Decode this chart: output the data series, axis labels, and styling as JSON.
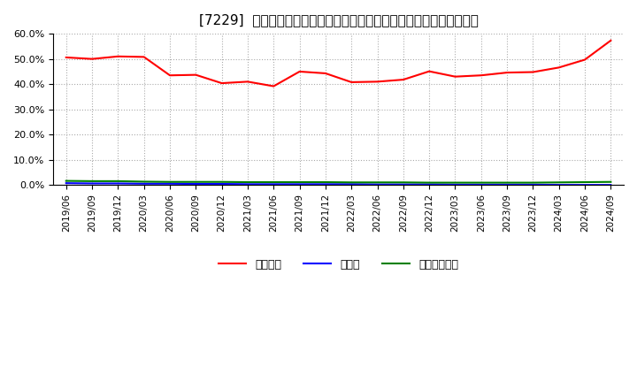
{
  "title": "[7229]  自己資本、のれん、繰延税金資産の総資産に対する比率の推移",
  "x_labels": [
    "2019/06",
    "2019/09",
    "2019/12",
    "2020/03",
    "2020/06",
    "2020/09",
    "2020/12",
    "2021/03",
    "2021/06",
    "2021/09",
    "2021/12",
    "2022/03",
    "2022/06",
    "2022/09",
    "2022/12",
    "2023/03",
    "2023/06",
    "2023/09",
    "2023/12",
    "2024/03",
    "2024/06",
    "2024/09"
  ],
  "equity": [
    0.506,
    0.5,
    0.51,
    0.508,
    0.435,
    0.437,
    0.404,
    0.41,
    0.392,
    0.45,
    0.443,
    0.408,
    0.41,
    0.418,
    0.451,
    0.43,
    0.435,
    0.446,
    0.448,
    0.466,
    0.497,
    0.573
  ],
  "noren": [
    0.008,
    0.007,
    0.007,
    0.006,
    0.006,
    0.005,
    0.005,
    0.004,
    0.004,
    0.004,
    0.004,
    0.004,
    0.003,
    0.003,
    0.003,
    0.002,
    0.002,
    0.002,
    0.002,
    0.001,
    0.001,
    0.001
  ],
  "deferred_tax": [
    0.017,
    0.016,
    0.016,
    0.014,
    0.013,
    0.013,
    0.013,
    0.012,
    0.012,
    0.012,
    0.012,
    0.011,
    0.011,
    0.011,
    0.01,
    0.01,
    0.01,
    0.01,
    0.01,
    0.011,
    0.012,
    0.013
  ],
  "equity_color": "#FF0000",
  "noren_color": "#0000FF",
  "deferred_tax_color": "#008000",
  "ylim": [
    0.0,
    0.6
  ],
  "yticks": [
    0.0,
    0.1,
    0.2,
    0.3,
    0.4,
    0.5,
    0.6
  ],
  "background_color": "#FFFFFF",
  "plot_bg_color": "#FFFFFF",
  "grid_color": "#AAAAAA",
  "legend_labels": [
    "自己資本",
    "のれん",
    "繰延税金資産"
  ]
}
